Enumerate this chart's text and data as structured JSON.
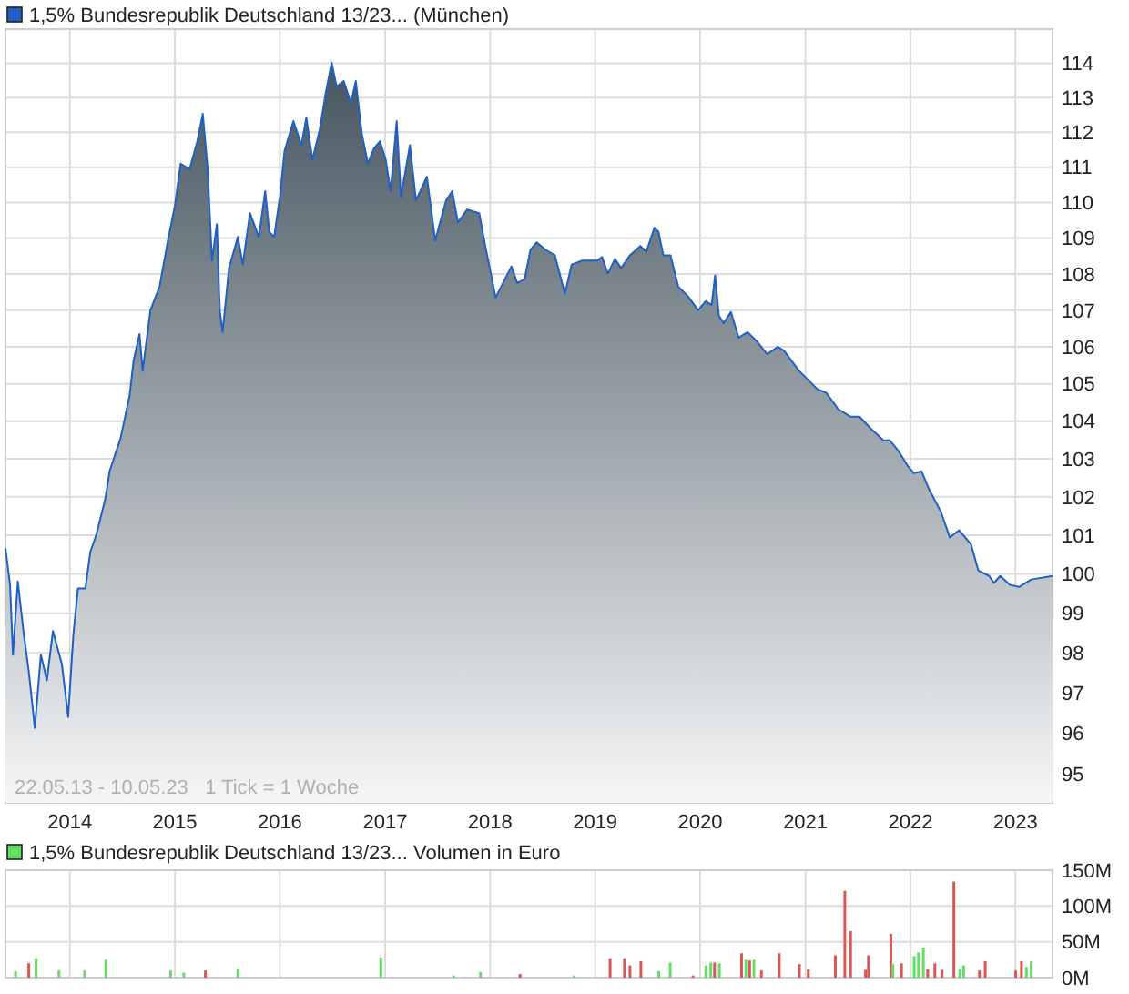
{
  "chart_data": [
    {
      "type": "area",
      "log": true,
      "grid": true,
      "legend": "top left",
      "line_style": "solid",
      "xlim": [
        "2013-05-22",
        "2023-05-10"
      ],
      "ylim": [
        94.3,
        115
      ],
      "xticks": [
        {
          "value": "2014-01-01",
          "label": "2014"
        },
        {
          "value": "2015-01-01",
          "label": "2015"
        },
        {
          "value": "2016-01-01",
          "label": "2016"
        },
        {
          "value": "2017-01-01",
          "label": "2017"
        },
        {
          "value": "2018-01-01",
          "label": "2018"
        },
        {
          "value": "2019-01-01",
          "label": "2019"
        },
        {
          "value": "2020-01-01",
          "label": "2020"
        },
        {
          "value": "2021-01-01",
          "label": "2021"
        },
        {
          "value": "2022-01-01",
          "label": "2022"
        },
        {
          "value": "2023-01-01",
          "label": "2023"
        }
      ],
      "yticks": [
        95,
        96,
        97,
        98,
        99,
        100,
        101,
        102,
        103,
        104,
        105,
        106,
        107,
        108,
        109,
        110,
        111,
        112,
        113,
        114
      ],
      "annotations": [
        "22.05.13 - 10.05.23   1 Tick = 1 Woche"
      ],
      "series": [
        {
          "name": "1,5% Bundesrepublik Deutschland 13/23... (München)",
          "color": "#1f5fc8",
          "x": [
            "2013-05-22",
            "2013-06-07",
            "2013-06-17",
            "2013-07-04",
            "2013-07-25",
            "2013-08-11",
            "2013-09-01",
            "2013-09-22",
            "2013-10-13",
            "2013-11-03",
            "2013-12-04",
            "2013-12-26",
            "2014-01-13",
            "2014-01-29",
            "2014-02-24",
            "2014-03-13",
            "2014-04-02",
            "2014-05-04",
            "2014-05-19",
            "2014-06-26",
            "2014-07-27",
            "2014-08-11",
            "2014-08-31",
            "2014-09-11",
            "2014-10-08",
            "2014-11-09",
            "2014-12-10",
            "2015-01-01",
            "2015-01-21",
            "2015-02-21",
            "2015-03-20",
            "2015-04-08",
            "2015-04-25",
            "2015-05-10",
            "2015-05-27",
            "2015-06-06",
            "2015-06-16",
            "2015-07-08",
            "2015-08-08",
            "2015-08-25",
            "2015-09-19",
            "2015-10-20",
            "2015-11-11",
            "2015-11-25",
            "2015-12-12",
            "2016-01-02",
            "2016-01-17",
            "2016-02-17",
            "2016-03-16",
            "2016-04-02",
            "2016-04-23",
            "2016-05-18",
            "2016-06-08",
            "2016-06-29",
            "2016-07-16",
            "2016-08-10",
            "2016-09-04",
            "2016-09-21",
            "2016-10-12",
            "2016-11-02",
            "2016-11-23",
            "2016-12-14",
            "2017-01-03",
            "2017-01-20",
            "2017-02-10",
            "2017-02-25",
            "2017-03-28",
            "2017-04-18",
            "2017-05-26",
            "2017-06-24",
            "2017-08-01",
            "2017-08-22",
            "2017-09-11",
            "2017-10-13",
            "2017-11-24",
            "2017-12-15",
            "2018-01-20",
            "2018-03-16",
            "2018-04-05",
            "2018-05-01",
            "2018-05-21",
            "2018-06-12",
            "2018-07-13",
            "2018-08-14",
            "2018-09-18",
            "2018-10-11",
            "2018-11-16",
            "2019-01-08",
            "2019-01-25",
            "2019-02-14",
            "2019-03-11",
            "2019-04-01",
            "2019-05-02",
            "2019-06-07",
            "2019-06-28",
            "2019-07-26",
            "2019-08-09",
            "2019-08-26",
            "2019-09-20",
            "2019-10-17",
            "2019-11-18",
            "2019-12-25",
            "2020-01-20",
            "2020-02-10",
            "2020-02-22",
            "2020-03-06",
            "2020-03-23",
            "2020-04-17",
            "2020-05-14",
            "2020-06-14",
            "2020-07-16",
            "2020-08-21",
            "2020-09-27",
            "2020-10-18",
            "2020-12-10",
            "2021-02-11",
            "2021-03-14",
            "2021-04-25",
            "2021-06-06",
            "2021-07-08",
            "2021-08-19",
            "2021-09-29",
            "2021-10-21",
            "2021-11-21",
            "2021-12-23",
            "2022-01-13",
            "2022-02-09",
            "2022-03-07",
            "2022-04-17",
            "2022-05-18",
            "2022-06-19",
            "2022-07-31",
            "2022-08-25",
            "2022-10-02",
            "2022-10-18",
            "2022-11-09",
            "2022-12-14",
            "2023-01-14",
            "2023-02-25",
            "2023-05-10"
          ],
          "values": [
            100.66,
            99.72,
            97.95,
            99.81,
            98.46,
            97.54,
            96.13,
            97.95,
            97.31,
            98.55,
            97.72,
            96.4,
            98.46,
            99.63,
            99.63,
            100.57,
            100.99,
            101.94,
            102.67,
            103.54,
            104.66,
            105.65,
            106.35,
            105.35,
            107.0,
            107.66,
            109.03,
            109.9,
            111.1,
            110.94,
            111.74,
            112.53,
            110.94,
            108.37,
            109.39,
            107.0,
            106.4,
            108.16,
            109.03,
            108.26,
            109.7,
            109.03,
            110.32,
            109.18,
            109.03,
            110.21,
            111.46,
            112.32,
            111.63,
            112.43,
            111.21,
            112.05,
            113.11,
            114.02,
            113.32,
            113.48,
            112.84,
            113.48,
            111.95,
            111.1,
            111.53,
            111.74,
            111.21,
            110.32,
            112.32,
            110.16,
            111.63,
            110.06,
            110.73,
            108.93,
            110.06,
            110.32,
            109.44,
            109.8,
            109.7,
            108.78,
            107.35,
            108.21,
            107.75,
            107.86,
            108.67,
            108.88,
            108.67,
            108.52,
            107.45,
            108.26,
            108.37,
            108.37,
            108.47,
            108.01,
            108.42,
            108.16,
            108.52,
            108.78,
            108.62,
            109.29,
            109.18,
            108.52,
            108.52,
            107.65,
            107.4,
            107.0,
            107.25,
            107.15,
            107.96,
            106.85,
            106.65,
            106.95,
            106.25,
            106.4,
            106.15,
            105.8,
            106.0,
            105.9,
            105.35,
            104.86,
            104.76,
            104.32,
            104.12,
            104.12,
            103.78,
            103.49,
            103.49,
            103.2,
            102.81,
            102.62,
            102.67,
            102.19,
            101.61,
            100.94,
            101.13,
            100.76,
            100.09,
            99.95,
            99.77,
            99.95,
            99.72,
            99.67,
            99.86,
            99.95
          ]
        }
      ]
    },
    {
      "type": "bar",
      "grid": true,
      "legend": "top left",
      "tick_labels": "y",
      "xlim": [
        "2013-05-22",
        "2023-05-10"
      ],
      "ylim": [
        0,
        150
      ],
      "xticks": [
        {
          "value": "2014-01-01",
          "label": null
        },
        {
          "value": "2015-01-01",
          "label": null
        },
        {
          "value": "2016-01-01",
          "label": null
        },
        {
          "value": "2017-01-01",
          "label": null
        },
        {
          "value": "2018-01-01",
          "label": null
        },
        {
          "value": "2019-01-01",
          "label": null
        },
        {
          "value": "2020-01-01",
          "label": null
        },
        {
          "value": "2021-01-01",
          "label": null
        },
        {
          "value": "2022-01-01",
          "label": null
        },
        {
          "value": "2023-01-01",
          "label": null
        }
      ],
      "yticks": [
        {
          "value": 0,
          "label": "0M"
        },
        {
          "value": 50,
          "label": "50M"
        },
        {
          "value": 100,
          "label": "100M"
        },
        {
          "value": 150,
          "label": "150M"
        }
      ],
      "series": [
        {
          "name": "1,5% Bundesrepublik Deutschland 13/23... Volumen in Euro",
          "color": "#66dd66",
          "x": [
            "2013-06-26",
            "2013-08-11",
            "2013-09-05",
            "2013-11-24",
            "2014-02-21",
            "2014-05-06",
            "2014-12-17",
            "2015-02-01",
            "2015-04-17",
            "2015-08-08",
            "2016-12-17",
            "2017-08-27",
            "2017-11-28",
            "2018-04-15",
            "2018-10-20",
            "2019-02-22",
            "2019-04-13",
            "2019-05-02",
            "2019-06-09",
            "2019-08-10",
            "2019-09-19",
            "2019-12-07",
            "2020-01-21",
            "2020-02-07",
            "2020-02-20",
            "2020-03-08",
            "2020-05-24",
            "2020-06-08",
            "2020-06-21",
            "2020-07-06",
            "2020-08-01",
            "2020-10-02",
            "2020-12-11",
            "2021-01-11",
            "2021-04-15",
            "2021-05-18",
            "2021-06-07",
            "2021-07-29",
            "2021-08-08",
            "2021-10-25",
            "2021-11-01",
            "2021-12-01",
            "2022-01-14",
            "2022-01-29",
            "2022-02-15",
            "2022-03-02",
            "2022-03-27",
            "2022-04-21",
            "2022-06-01",
            "2022-06-22",
            "2022-07-05",
            "2022-08-29",
            "2022-09-18",
            "2023-01-02",
            "2023-01-22",
            "2023-02-08",
            "2023-02-25"
          ],
          "values": [
            9,
            20,
            27,
            10,
            10,
            25,
            10,
            7,
            10,
            13,
            28,
            3,
            8,
            5,
            3,
            27,
            27,
            17,
            23,
            9,
            21,
            3,
            17,
            21,
            21,
            20,
            34,
            25,
            24,
            25,
            10,
            34,
            19,
            12,
            31,
            121,
            65,
            11,
            31,
            61,
            19,
            20,
            30,
            35,
            42,
            12,
            20,
            11,
            134,
            12,
            17,
            10,
            23,
            10,
            23,
            15,
            23
          ],
          "colors": [
            "#66dd66",
            "#dd5555",
            "#66dd66",
            "#66dd66",
            "#66dd66",
            "#66dd66",
            "#66dd66",
            "#66dd66",
            "#dd5555",
            "#66dd66",
            "#66dd66",
            "#66dd66",
            "#66dd66",
            "#dd5555",
            "#66dd66",
            "#dd5555",
            "#dd5555",
            "#dd5555",
            "#dd5555",
            "#66dd66",
            "#66dd66",
            "#dd5555",
            "#66dd66",
            "#66dd66",
            "#dd5555",
            "#66dd66",
            "#dd5555",
            "#66dd66",
            "#dd5555",
            "#66dd66",
            "#dd5555",
            "#dd5555",
            "#dd5555",
            "#dd5555",
            "#dd5555",
            "#dd5555",
            "#dd5555",
            "#dd5555",
            "#dd5555",
            "#dd5555",
            "#66dd66",
            "#dd5555",
            "#66dd66",
            "#66dd66",
            "#66dd66",
            "#dd5555",
            "#dd5555",
            "#dd5555",
            "#dd5555",
            "#66dd66",
            "#66dd66",
            "#dd5555",
            "#dd5555",
            "#dd5555",
            "#dd5555",
            "#66dd66",
            "#66dd66"
          ]
        }
      ]
    }
  ]
}
